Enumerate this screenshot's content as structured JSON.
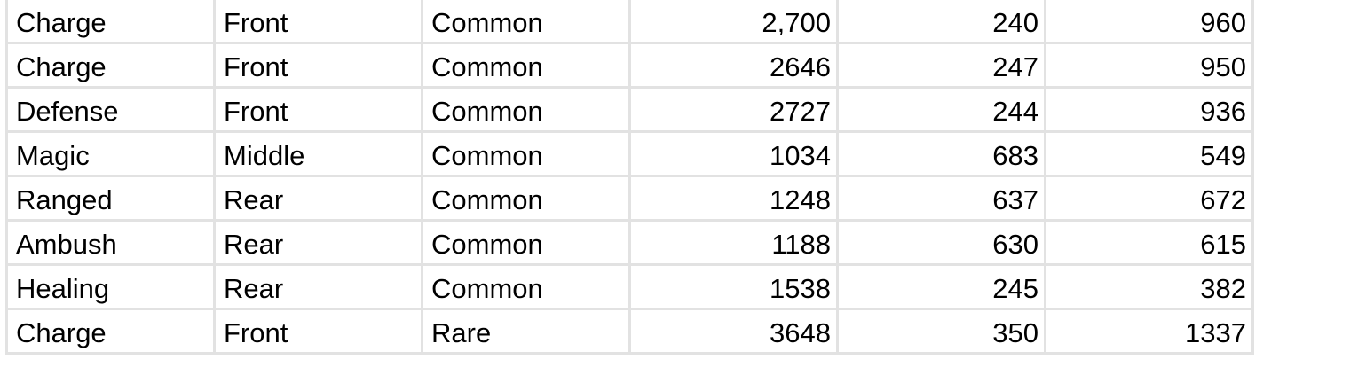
{
  "rows": [
    [
      "Charge",
      "Front",
      "Common",
      "2,700",
      "240",
      "960"
    ],
    [
      "Charge",
      "Front",
      "Common",
      "2646",
      "247",
      "950"
    ],
    [
      "Defense",
      "Front",
      "Common",
      "2727",
      "244",
      "936"
    ],
    [
      "Magic",
      "Middle",
      "Common",
      "1034",
      "683",
      "549"
    ],
    [
      "Ranged",
      "Rear",
      "Common",
      "1248",
      "637",
      "672"
    ],
    [
      "Ambush",
      "Rear",
      "Common",
      "1188",
      "630",
      "615"
    ],
    [
      "Healing",
      "Rear",
      "Common",
      "1538",
      "245",
      "382"
    ],
    [
      "Charge",
      "Front",
      "Rare",
      "3648",
      "350",
      "1337"
    ]
  ]
}
